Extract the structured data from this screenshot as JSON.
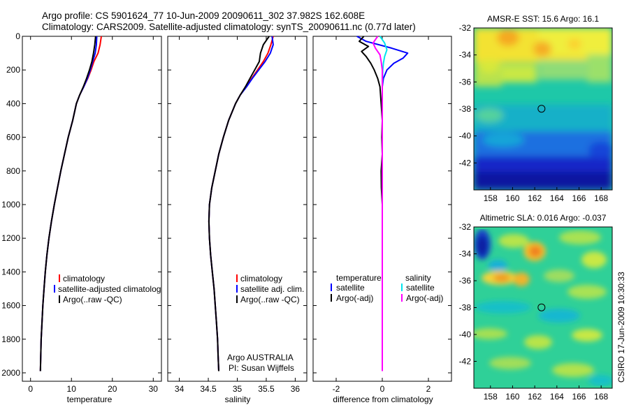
{
  "header": {
    "title_line1": "Argo profile: CS 5901624_77 10-Jun-2009 20090611_302 37.982S 162.608E",
    "title_line2": "Climatology: CARS2009. Satellite-adjusted climatology: synTS_20090611.nc (0.77d later)"
  },
  "colors": {
    "climatology": "#ff0000",
    "satellite": "#0000ff",
    "argo": "#000000",
    "sal_satellite": "#00e5ee",
    "sal_argo": "#ff00ff"
  },
  "credit": "CSIRO 17-Jun-2009 10:30:33",
  "chart_data": [
    {
      "id": "temperature",
      "type": "line",
      "xlabel": "temperature",
      "xlim": [
        -2,
        32
      ],
      "ylim": [
        2050,
        0
      ],
      "xticks": [
        0,
        10,
        20,
        30
      ],
      "yticks": [
        0,
        200,
        400,
        600,
        800,
        1000,
        1200,
        1400,
        1600,
        1800,
        2000
      ],
      "legend": [
        "climatology",
        "satellite-adjusted climatology",
        "Argo(..raw -QC)"
      ],
      "legend_display": [
        "climatology",
        "satellite-adjusted climatolog",
        "Argo(..raw -QC)"
      ],
      "series": [
        {
          "name": "climatology",
          "color": "red",
          "points": [
            [
              17.3,
              0
            ],
            [
              17.0,
              50
            ],
            [
              16.5,
              100
            ],
            [
              15.5,
              150
            ],
            [
              14.8,
              200
            ],
            [
              14.0,
              250
            ],
            [
              13.0,
              300
            ],
            [
              12.0,
              350
            ],
            [
              11.2,
              400
            ],
            [
              10.3,
              500
            ],
            [
              9.2,
              600
            ],
            [
              8.3,
              700
            ],
            [
              7.4,
              800
            ],
            [
              6.6,
              900
            ],
            [
              5.8,
              1000
            ],
            [
              5.1,
              1100
            ],
            [
              4.5,
              1200
            ],
            [
              4.0,
              1300
            ],
            [
              3.6,
              1400
            ],
            [
              3.3,
              1500
            ],
            [
              3.0,
              1600
            ],
            [
              2.8,
              1700
            ],
            [
              2.6,
              1800
            ],
            [
              2.5,
              1900
            ],
            [
              2.4,
              1990
            ]
          ]
        },
        {
          "name": "satellite-adjusted climatology",
          "color": "blue",
          "points": [
            [
              16.2,
              0
            ],
            [
              16.1,
              50
            ],
            [
              15.8,
              100
            ],
            [
              15.2,
              150
            ],
            [
              14.6,
              200
            ],
            [
              13.9,
              250
            ],
            [
              13.0,
              300
            ],
            [
              12.0,
              350
            ],
            [
              11.2,
              400
            ],
            [
              10.3,
              500
            ],
            [
              9.2,
              600
            ],
            [
              8.3,
              700
            ],
            [
              7.4,
              800
            ],
            [
              6.6,
              900
            ],
            [
              5.8,
              1000
            ],
            [
              5.1,
              1100
            ],
            [
              4.5,
              1200
            ],
            [
              4.0,
              1300
            ],
            [
              3.6,
              1400
            ],
            [
              3.3,
              1500
            ],
            [
              3.0,
              1600
            ],
            [
              2.8,
              1700
            ],
            [
              2.6,
              1800
            ],
            [
              2.5,
              1900
            ],
            [
              2.4,
              1990
            ]
          ]
        },
        {
          "name": "Argo(..raw -QC)",
          "color": "black",
          "points": [
            [
              15.9,
              0
            ],
            [
              15.7,
              50
            ],
            [
              15.4,
              100
            ],
            [
              15.0,
              150
            ],
            [
              14.4,
              200
            ],
            [
              13.7,
              250
            ],
            [
              12.9,
              300
            ],
            [
              12.0,
              350
            ],
            [
              11.2,
              400
            ],
            [
              10.3,
              500
            ],
            [
              9.2,
              600
            ],
            [
              8.3,
              700
            ],
            [
              7.4,
              800
            ],
            [
              6.6,
              900
            ],
            [
              5.8,
              1000
            ],
            [
              5.1,
              1100
            ],
            [
              4.5,
              1200
            ],
            [
              4.0,
              1300
            ],
            [
              3.6,
              1400
            ],
            [
              3.3,
              1500
            ],
            [
              3.0,
              1600
            ],
            [
              2.8,
              1700
            ],
            [
              2.6,
              1800
            ],
            [
              2.5,
              1900
            ],
            [
              2.4,
              1990
            ]
          ]
        }
      ]
    },
    {
      "id": "salinity",
      "type": "line",
      "xlabel": "salinity",
      "xlim": [
        33.8,
        36.2
      ],
      "ylim": [
        2050,
        0
      ],
      "xticks": [
        34,
        34.5,
        35,
        35.5,
        36
      ],
      "yticks": [
        0,
        200,
        400,
        600,
        800,
        1000,
        1200,
        1400,
        1600,
        1800,
        2000
      ],
      "legend": [
        "climatology",
        "satellite adj. clim.",
        "Argo(..raw -QC)"
      ],
      "series": [
        {
          "name": "climatology",
          "color": "red",
          "points": [
            [
              35.62,
              0
            ],
            [
              35.58,
              50
            ],
            [
              35.53,
              100
            ],
            [
              35.45,
              150
            ],
            [
              35.35,
              200
            ],
            [
              35.25,
              250
            ],
            [
              35.15,
              300
            ],
            [
              35.05,
              350
            ],
            [
              34.97,
              400
            ],
            [
              34.85,
              500
            ],
            [
              34.76,
              600
            ],
            [
              34.68,
              700
            ],
            [
              34.62,
              800
            ],
            [
              34.56,
              900
            ],
            [
              34.52,
              1000
            ],
            [
              34.51,
              1100
            ],
            [
              34.52,
              1200
            ],
            [
              34.54,
              1300
            ],
            [
              34.57,
              1400
            ],
            [
              34.6,
              1500
            ],
            [
              34.62,
              1600
            ],
            [
              34.64,
              1700
            ],
            [
              34.66,
              1800
            ],
            [
              34.67,
              1900
            ],
            [
              34.68,
              1990
            ]
          ]
        },
        {
          "name": "satellite adj. clim.",
          "color": "blue",
          "points": [
            [
              35.6,
              0
            ],
            [
              35.62,
              50
            ],
            [
              35.57,
              100
            ],
            [
              35.48,
              150
            ],
            [
              35.37,
              200
            ],
            [
              35.26,
              250
            ],
            [
              35.16,
              300
            ],
            [
              35.05,
              350
            ],
            [
              34.97,
              400
            ],
            [
              34.85,
              500
            ],
            [
              34.76,
              600
            ],
            [
              34.68,
              700
            ],
            [
              34.62,
              800
            ],
            [
              34.56,
              900
            ],
            [
              34.52,
              1000
            ],
            [
              34.51,
              1100
            ],
            [
              34.52,
              1200
            ],
            [
              34.54,
              1300
            ],
            [
              34.57,
              1400
            ],
            [
              34.6,
              1500
            ],
            [
              34.62,
              1600
            ],
            [
              34.64,
              1700
            ],
            [
              34.66,
              1800
            ],
            [
              34.67,
              1900
            ],
            [
              34.68,
              1990
            ]
          ]
        },
        {
          "name": "Argo(..raw -QC)",
          "color": "black",
          "points": [
            [
              35.55,
              0
            ],
            [
              35.45,
              50
            ],
            [
              35.4,
              100
            ],
            [
              35.38,
              150
            ],
            [
              35.3,
              200
            ],
            [
              35.22,
              250
            ],
            [
              35.14,
              300
            ],
            [
              35.05,
              350
            ],
            [
              34.97,
              400
            ],
            [
              34.85,
              500
            ],
            [
              34.76,
              600
            ],
            [
              34.68,
              700
            ],
            [
              34.62,
              800
            ],
            [
              34.56,
              900
            ],
            [
              34.52,
              1000
            ],
            [
              34.51,
              1100
            ],
            [
              34.52,
              1200
            ],
            [
              34.54,
              1300
            ],
            [
              34.57,
              1400
            ],
            [
              34.6,
              1500
            ],
            [
              34.62,
              1600
            ],
            [
              34.64,
              1700
            ],
            [
              34.66,
              1800
            ],
            [
              34.67,
              1900
            ],
            [
              34.68,
              1990
            ]
          ]
        }
      ],
      "annotations": [
        "Argo AUSTRALIA",
        "PI: Susan Wijffels"
      ]
    },
    {
      "id": "difference",
      "type": "line",
      "xlabel": "difference from climatology",
      "xlim": [
        -3,
        3
      ],
      "ylim": [
        2050,
        0
      ],
      "xticks": [
        -2,
        0,
        2
      ],
      "yticks": [
        0,
        200,
        400,
        600,
        800,
        1000,
        1200,
        1400,
        1600,
        1800,
        2000
      ],
      "legend_headers": [
        "temperature",
        "salinity"
      ],
      "legend": [
        "satellite",
        "Argo(-adj)",
        "satellite",
        "Argo(-adj)"
      ],
      "series": [
        {
          "name": "temperature satellite",
          "color": "blue",
          "points": [
            [
              -1.1,
              0
            ],
            [
              -0.7,
              30
            ],
            [
              0.4,
              70
            ],
            [
              1.1,
              100
            ],
            [
              0.9,
              130
            ],
            [
              0.5,
              160
            ],
            [
              0.2,
              200
            ],
            [
              0.05,
              250
            ],
            [
              0.0,
              300
            ],
            [
              0.0,
              400
            ],
            [
              0.0,
              600
            ],
            [
              0.0,
              800
            ],
            [
              0.0,
              1000
            ],
            [
              0.0,
              1200
            ],
            [
              0.0,
              1400
            ],
            [
              0.0,
              1600
            ],
            [
              0.0,
              1800
            ],
            [
              0.0,
              1990
            ]
          ]
        },
        {
          "name": "temperature Argo(-adj)",
          "color": "black",
          "points": [
            [
              -0.8,
              0
            ],
            [
              -1.0,
              30
            ],
            [
              -0.6,
              60
            ],
            [
              -0.9,
              90
            ],
            [
              -0.7,
              120
            ],
            [
              -0.5,
              160
            ],
            [
              -0.35,
              200
            ],
            [
              -0.2,
              250
            ],
            [
              -0.1,
              300
            ],
            [
              -0.05,
              400
            ],
            [
              0.0,
              500
            ],
            [
              -0.02,
              600
            ],
            [
              0.0,
              700
            ],
            [
              -0.05,
              800
            ],
            [
              -0.04,
              900
            ],
            [
              0.0,
              1000
            ],
            [
              0.0,
              1200
            ],
            [
              0.0,
              1400
            ],
            [
              0.0,
              1600
            ],
            [
              0.0,
              1800
            ],
            [
              0.0,
              1990
            ]
          ]
        },
        {
          "name": "salinity satellite",
          "color": "cyan",
          "points": [
            [
              -0.1,
              0
            ],
            [
              0.1,
              40
            ],
            [
              0.2,
              80
            ],
            [
              0.1,
              120
            ],
            [
              0.05,
              160
            ],
            [
              0.02,
              200
            ],
            [
              0.0,
              300
            ],
            [
              0.0,
              400
            ],
            [
              0.0,
              600
            ],
            [
              0.0,
              800
            ],
            [
              0.0,
              1000
            ],
            [
              0.0,
              1200
            ],
            [
              0.0,
              1400
            ],
            [
              0.0,
              1600
            ],
            [
              0.0,
              1800
            ],
            [
              0.0,
              1990
            ]
          ]
        },
        {
          "name": "salinity Argo(-adj)",
          "color": "magenta",
          "points": [
            [
              -0.2,
              0
            ],
            [
              -0.4,
              40
            ],
            [
              -0.3,
              70
            ],
            [
              -0.1,
              110
            ],
            [
              -0.05,
              150
            ],
            [
              0.0,
              200
            ],
            [
              0.0,
              300
            ],
            [
              0.0,
              400
            ],
            [
              0.0,
              600
            ],
            [
              0.0,
              800
            ],
            [
              0.0,
              1000
            ],
            [
              0.0,
              1200
            ],
            [
              0.0,
              1400
            ],
            [
              0.0,
              1600
            ],
            [
              0.0,
              1800
            ],
            [
              0.0,
              1990
            ]
          ]
        }
      ]
    },
    {
      "id": "sst_map",
      "type": "heatmap",
      "title": "AMSR-E SST: 15.6 Argo: 16.1",
      "xlim": [
        156.5,
        169
      ],
      "ylim": [
        -44,
        -32
      ],
      "xticks": [
        158,
        160,
        162,
        164,
        166,
        168
      ],
      "yticks": [
        -32,
        -34,
        -36,
        -38,
        -40,
        -42
      ],
      "marker": {
        "lon": 162.608,
        "lat": -37.982
      }
    },
    {
      "id": "sla_map",
      "type": "heatmap",
      "title": "Altimetric SLA: 0.016 Argo: -0.037",
      "xlim": [
        156.5,
        169
      ],
      "ylim": [
        -44,
        -32
      ],
      "xticks": [
        158,
        160,
        162,
        164,
        166,
        168
      ],
      "yticks": [
        -32,
        -34,
        -36,
        -38,
        -40,
        -42
      ],
      "marker": {
        "lon": 162.608,
        "lat": -37.982
      }
    }
  ]
}
